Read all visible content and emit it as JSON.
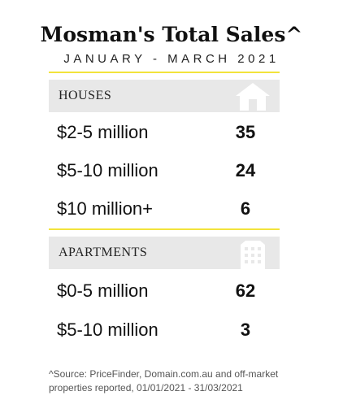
{
  "header": {
    "title": "Mosman's Total Sales^",
    "subtitle": "JANUARY - MARCH 2021"
  },
  "sections": [
    {
      "label": "HOUSES",
      "icon": "house-icon",
      "rows": [
        {
          "range": "$2-5 million",
          "count": "35"
        },
        {
          "range": "$5-10 million",
          "count": "24"
        },
        {
          "range": "$10 million+",
          "count": "6"
        }
      ]
    },
    {
      "label": "APARTMENTS",
      "icon": "apartment-building-icon",
      "rows": [
        {
          "range": "$0-5 million",
          "count": "62"
        },
        {
          "range": "$5-10 million",
          "count": "3"
        }
      ]
    }
  ],
  "footnote": "^Source: PriceFinder, Domain.com.au and off-market properties reported, 01/01/2021 - 31/03/2021",
  "colors": {
    "accent_rule": "#f2e33b",
    "band": "#e8e8e8",
    "icon_fill": "#ffffff"
  }
}
